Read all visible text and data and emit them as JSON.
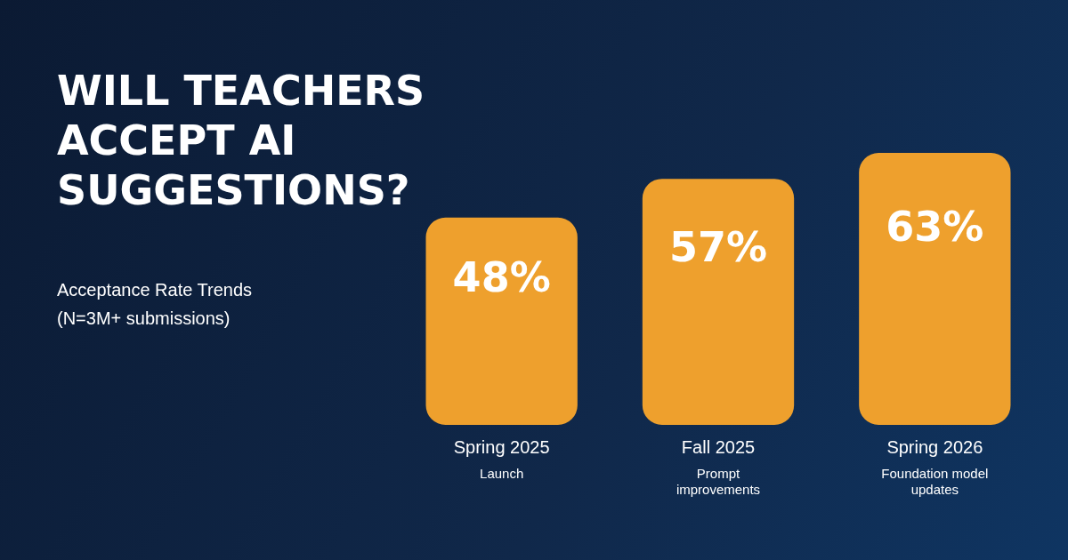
{
  "chart_data": {
    "type": "bar",
    "title": "WILL TEACHERS ACCEPT AI SUGGESTIONS?",
    "subtitle": "Acceptance Rate Trends (N=3M+ submissions)",
    "categories": [
      "Spring 2025",
      "Fall 2025",
      "Spring 2026"
    ],
    "values": [
      48,
      57,
      63
    ],
    "color": "#eea02d",
    "value_labels": [
      "48%",
      "57%",
      "63%"
    ],
    "annotations": [
      "Launch",
      "Prompt improvements",
      "Foundation model updates"
    ],
    "grid": false,
    "legend": false
  }
}
